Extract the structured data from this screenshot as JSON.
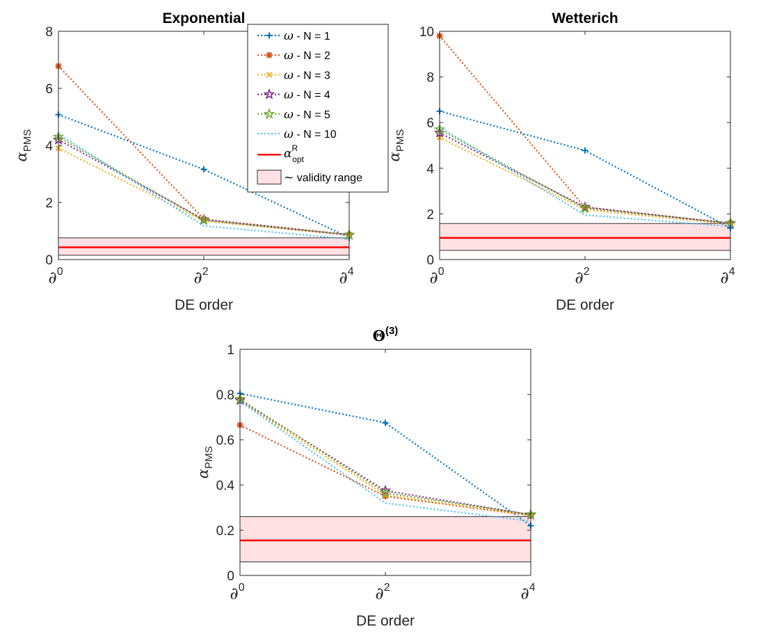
{
  "colors": {
    "N1": "#0072BD",
    "N2": "#D95319",
    "N3": "#EDB120",
    "N4": "#7E2F8E",
    "N5": "#77AC30",
    "N10": "#4DBEEE",
    "opt": "#FF0000",
    "validity_fill": "#FFE0E3",
    "validity_edge": "#000000"
  },
  "legend": {
    "items": [
      {
        "symbol": "ω",
        "label": " - N = 1",
        "series": "N1",
        "marker": "plus"
      },
      {
        "symbol": "ω",
        "label": " - N = 2",
        "series": "N2",
        "marker": "asterisk"
      },
      {
        "symbol": "ω",
        "label": " - N = 3",
        "series": "N3",
        "marker": "x"
      },
      {
        "symbol": "ω",
        "label": " - N = 4",
        "series": "N4",
        "marker": "star"
      },
      {
        "symbol": "ω",
        "label": " - N = 5",
        "series": "N5",
        "marker": "star"
      },
      {
        "symbol": "ω",
        "label": " - N = 10",
        "series": "N10",
        "marker": "none"
      }
    ],
    "opt_symbol": "α",
    "opt_sup": "R",
    "opt_sub": "opt",
    "validity_symbol": "∼",
    "validity_label": " validity range"
  },
  "chart_data": [
    {
      "type": "line",
      "title": "Exponential",
      "title_sup": "",
      "xlabel": "DE order",
      "ylabel": "α",
      "ylabel_sub": "PMS",
      "x": [
        0,
        2,
        4
      ],
      "x_tick_base": "∂",
      "x_tick_sup": [
        "0",
        "2",
        "4"
      ],
      "xlim": [
        0,
        4
      ],
      "ylim": [
        0,
        8
      ],
      "yticks": [
        0,
        2,
        4,
        6,
        8
      ],
      "ytick_labels": [
        "0",
        "2",
        "4",
        "6",
        "8"
      ],
      "series": [
        {
          "name": "ω - N = 1",
          "key": "N1",
          "values": [
            5.08,
            3.16,
            0.77
          ]
        },
        {
          "name": "ω - N = 2",
          "key": "N2",
          "values": [
            6.78,
            1.42,
            0.87
          ]
        },
        {
          "name": "ω - N = 3",
          "key": "N3",
          "values": [
            3.9,
            1.35,
            0.85
          ]
        },
        {
          "name": "ω - N = 4",
          "key": "N4",
          "values": [
            4.2,
            1.4,
            0.86
          ]
        },
        {
          "name": "ω - N = 5",
          "key": "N5",
          "values": [
            4.3,
            1.38,
            0.87
          ]
        },
        {
          "name": "ω - N = 10",
          "key": "N10",
          "values": [
            4.4,
            1.18,
            0.72
          ]
        }
      ],
      "alpha_opt": 0.43,
      "validity_range": [
        0.15,
        0.76
      ]
    },
    {
      "type": "line",
      "title": "Wetterich",
      "title_sup": "",
      "xlabel": "DE order",
      "ylabel": "α",
      "ylabel_sub": "PMS",
      "x": [
        0,
        2,
        4
      ],
      "x_tick_base": "∂",
      "x_tick_sup": [
        "0",
        "2",
        "4"
      ],
      "xlim": [
        0,
        4
      ],
      "ylim": [
        0,
        10
      ],
      "yticks": [
        0,
        2,
        4,
        6,
        8,
        10
      ],
      "ytick_labels": [
        "0",
        "2",
        "4",
        "6",
        "8",
        "10"
      ],
      "series": [
        {
          "name": "ω - N = 1",
          "key": "N1",
          "values": [
            6.5,
            4.78,
            1.38
          ]
        },
        {
          "name": "ω - N = 2",
          "key": "N2",
          "values": [
            9.8,
            2.28,
            1.6
          ]
        },
        {
          "name": "ω - N = 3",
          "key": "N3",
          "values": [
            5.35,
            2.18,
            1.55
          ]
        },
        {
          "name": "ω - N = 4",
          "key": "N4",
          "values": [
            5.55,
            2.3,
            1.58
          ]
        },
        {
          "name": "ω - N = 5",
          "key": "N5",
          "values": [
            5.7,
            2.25,
            1.6
          ]
        },
        {
          "name": "ω - N = 10",
          "key": "N10",
          "values": [
            5.8,
            1.95,
            1.45
          ]
        }
      ],
      "alpha_opt": 0.95,
      "validity_range": [
        0.4,
        1.58
      ]
    },
    {
      "type": "line",
      "title": "Θ",
      "title_sup": "(3)",
      "xlabel": "DE order",
      "ylabel": "α",
      "ylabel_sub": "PMS",
      "x": [
        0,
        2,
        4
      ],
      "x_tick_base": "∂",
      "x_tick_sup": [
        "0",
        "2",
        "4"
      ],
      "xlim": [
        0,
        4
      ],
      "ylim": [
        0,
        1
      ],
      "yticks": [
        0,
        0.2,
        0.4,
        0.6,
        0.8,
        1
      ],
      "ytick_labels": [
        "0",
        "0.2",
        "0.4",
        "0.6",
        "0.8",
        "1"
      ],
      "series": [
        {
          "name": "ω - N = 1",
          "key": "N1",
          "values": [
            0.805,
            0.675,
            0.22
          ]
        },
        {
          "name": "ω - N = 2",
          "key": "N2",
          "values": [
            0.665,
            0.35,
            0.265
          ]
        },
        {
          "name": "ω - N = 3",
          "key": "N3",
          "values": [
            0.77,
            0.355,
            0.265
          ]
        },
        {
          "name": "ω - N = 4",
          "key": "N4",
          "values": [
            0.775,
            0.375,
            0.268
          ]
        },
        {
          "name": "ω - N = 5",
          "key": "N5",
          "values": [
            0.78,
            0.365,
            0.27
          ]
        },
        {
          "name": "ω - N = 10",
          "key": "N10",
          "values": [
            0.77,
            0.32,
            0.24
          ]
        }
      ],
      "alpha_opt": 0.155,
      "validity_range": [
        0.06,
        0.26
      ]
    }
  ]
}
